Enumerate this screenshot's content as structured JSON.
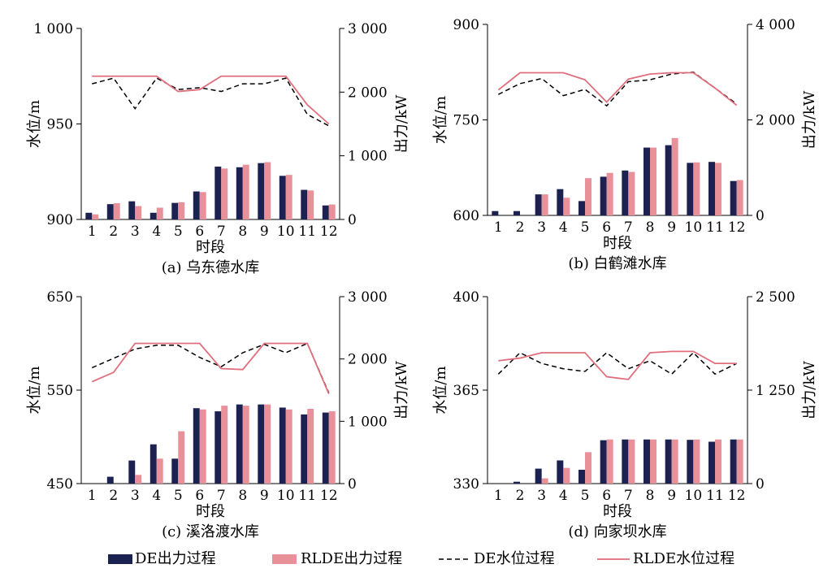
{
  "colors": {
    "de_bar": "#1b2150",
    "rlde_bar": "#e8919a",
    "de_line": "#000000",
    "rlde_line": "#e06e7c"
  },
  "legend": {
    "de_output": "DE出力过程",
    "rlde_output": "RLDE出力过程",
    "de_level": "DE水位过程",
    "rlde_level": "RLDE水位过程"
  },
  "chart_data": [
    {
      "type": "bar",
      "caption": "(a) 乌东德水库",
      "xlabel": "时段",
      "ylabel_left": "水位/m",
      "ylabel_right": "出力/kW",
      "categories": [
        "1",
        "2",
        "3",
        "4",
        "5",
        "6",
        "7",
        "8",
        "9",
        "10",
        "11",
        "12"
      ],
      "left_ticks": [
        900,
        950,
        1000
      ],
      "left_tick_labels": [
        "900",
        "950",
        "1 000"
      ],
      "right_ticks": [
        0,
        1000,
        2000,
        3000
      ],
      "right_tick_labels": [
        "0",
        "1 000",
        "2 000",
        "3 000"
      ],
      "ylim_left": [
        900,
        1000
      ],
      "ylim_right": [
        0,
        3000
      ],
      "series": [
        {
          "name": "DE出力过程",
          "kind": "bar",
          "axis": "right",
          "values": [
            105,
            240,
            285,
            105,
            260,
            440,
            830,
            820,
            885,
            685,
            465,
            220
          ]
        },
        {
          "name": "RLDE出力过程",
          "kind": "bar",
          "axis": "right",
          "values": [
            80,
            255,
            210,
            185,
            270,
            430,
            800,
            860,
            900,
            700,
            455,
            235
          ]
        },
        {
          "name": "DE水位过程",
          "kind": "line",
          "axis": "left",
          "values": [
            971,
            974,
            958,
            974,
            968,
            969,
            967,
            971,
            971,
            974,
            955,
            949
          ]
        },
        {
          "name": "RLDE水位过程",
          "kind": "line",
          "axis": "left",
          "values": [
            975,
            975,
            975,
            975,
            967,
            968,
            975,
            975,
            975,
            975,
            960,
            950
          ]
        }
      ]
    },
    {
      "type": "bar",
      "caption": "(b) 白鹤滩水库",
      "xlabel": "时段",
      "ylabel_left": "水位/m",
      "ylabel_right": "出力/kW",
      "categories": [
        "1",
        "2",
        "3",
        "4",
        "5",
        "6",
        "7",
        "8",
        "9",
        "10",
        "11",
        "12"
      ],
      "left_ticks": [
        600,
        750,
        900
      ],
      "left_tick_labels": [
        "600",
        "750",
        "900"
      ],
      "right_ticks": [
        0,
        2000,
        4000
      ],
      "right_tick_labels": [
        "0",
        "2 000",
        "4 000"
      ],
      "ylim_left": [
        600,
        900
      ],
      "ylim_right": [
        0,
        4000
      ],
      "series": [
        {
          "name": "DE出力过程",
          "kind": "bar",
          "axis": "right",
          "values": [
            90,
            90,
            440,
            550,
            300,
            810,
            940,
            1420,
            1470,
            1100,
            1120,
            720
          ]
        },
        {
          "name": "RLDE出力过程",
          "kind": "bar",
          "axis": "right",
          "values": [
            0,
            0,
            440,
            370,
            780,
            890,
            910,
            1420,
            1620,
            1110,
            1100,
            740
          ]
        },
        {
          "name": "DE水位过程",
          "kind": "line",
          "axis": "left",
          "values": [
            790,
            807,
            815,
            788,
            798,
            772,
            810,
            813,
            822,
            825,
            800,
            775
          ]
        },
        {
          "name": "RLDE水位过程",
          "kind": "line",
          "axis": "left",
          "values": [
            797,
            824,
            824,
            824,
            813,
            778,
            814,
            822,
            824,
            824,
            800,
            773
          ]
        }
      ]
    },
    {
      "type": "bar",
      "caption": "(c) 溪洛渡水库",
      "xlabel": "时段",
      "ylabel_left": "水位/m",
      "ylabel_right": "出力/kW",
      "categories": [
        "1",
        "2",
        "3",
        "4",
        "5",
        "6",
        "7",
        "8",
        "9",
        "10",
        "11",
        "12"
      ],
      "left_ticks": [
        450,
        550,
        650
      ],
      "left_tick_labels": [
        "450",
        "550",
        "650"
      ],
      "right_ticks": [
        0,
        1000,
        2000,
        3000
      ],
      "right_tick_labels": [
        "0",
        "1 000",
        "2 000",
        "3 000"
      ],
      "ylim_left": [
        450,
        650
      ],
      "ylim_right": [
        0,
        3000
      ],
      "series": [
        {
          "name": "DE出力过程",
          "kind": "bar",
          "axis": "right",
          "values": [
            0,
            110,
            370,
            630,
            400,
            1210,
            1160,
            1270,
            1270,
            1220,
            1110,
            1140
          ]
        },
        {
          "name": "RLDE出力过程",
          "kind": "bar",
          "axis": "right",
          "values": [
            0,
            0,
            140,
            400,
            840,
            1190,
            1250,
            1250,
            1270,
            1190,
            1200,
            1160
          ]
        },
        {
          "name": "DE水位过程",
          "kind": "line",
          "axis": "left",
          "values": [
            574,
            584,
            594,
            598,
            598,
            585,
            575,
            590,
            599,
            590,
            600,
            547
          ]
        },
        {
          "name": "RLDE水位过程",
          "kind": "line",
          "axis": "left",
          "values": [
            559,
            569,
            600,
            600,
            600,
            600,
            573,
            572,
            600,
            600,
            600,
            546
          ]
        }
      ]
    },
    {
      "type": "bar",
      "caption": "(d) 向家坝水库",
      "xlabel": "时段",
      "ylabel_left": "水位/m",
      "ylabel_right": "出力/kW",
      "categories": [
        "1",
        "2",
        "3",
        "4",
        "5",
        "6",
        "7",
        "8",
        "9",
        "10",
        "11",
        "12"
      ],
      "left_ticks": [
        330,
        365,
        400
      ],
      "left_tick_labels": [
        "330",
        "365",
        "400"
      ],
      "right_ticks": [
        0,
        1250,
        2500
      ],
      "right_tick_labels": [
        "0",
        "1 250",
        "2 500"
      ],
      "ylim_left": [
        330,
        400
      ],
      "ylim_right": [
        0,
        2500
      ],
      "series": [
        {
          "name": "DE出力过程",
          "kind": "bar",
          "axis": "right",
          "values": [
            0,
            25,
            200,
            310,
            185,
            580,
            590,
            590,
            590,
            585,
            560,
            590
          ]
        },
        {
          "name": "RLDE出力过程",
          "kind": "bar",
          "axis": "right",
          "values": [
            0,
            0,
            70,
            210,
            420,
            590,
            590,
            590,
            590,
            590,
            590,
            590
          ]
        },
        {
          "name": "DE水位过程",
          "kind": "line",
          "axis": "left",
          "values": [
            371,
            379,
            375,
            373,
            372,
            379,
            373,
            376,
            371,
            379,
            371,
            375
          ]
        },
        {
          "name": "RLDE水位过程",
          "kind": "line",
          "axis": "left",
          "values": [
            376,
            377,
            379,
            379,
            379,
            370,
            369,
            379,
            379.5,
            379.5,
            375,
            375
          ]
        }
      ]
    }
  ]
}
